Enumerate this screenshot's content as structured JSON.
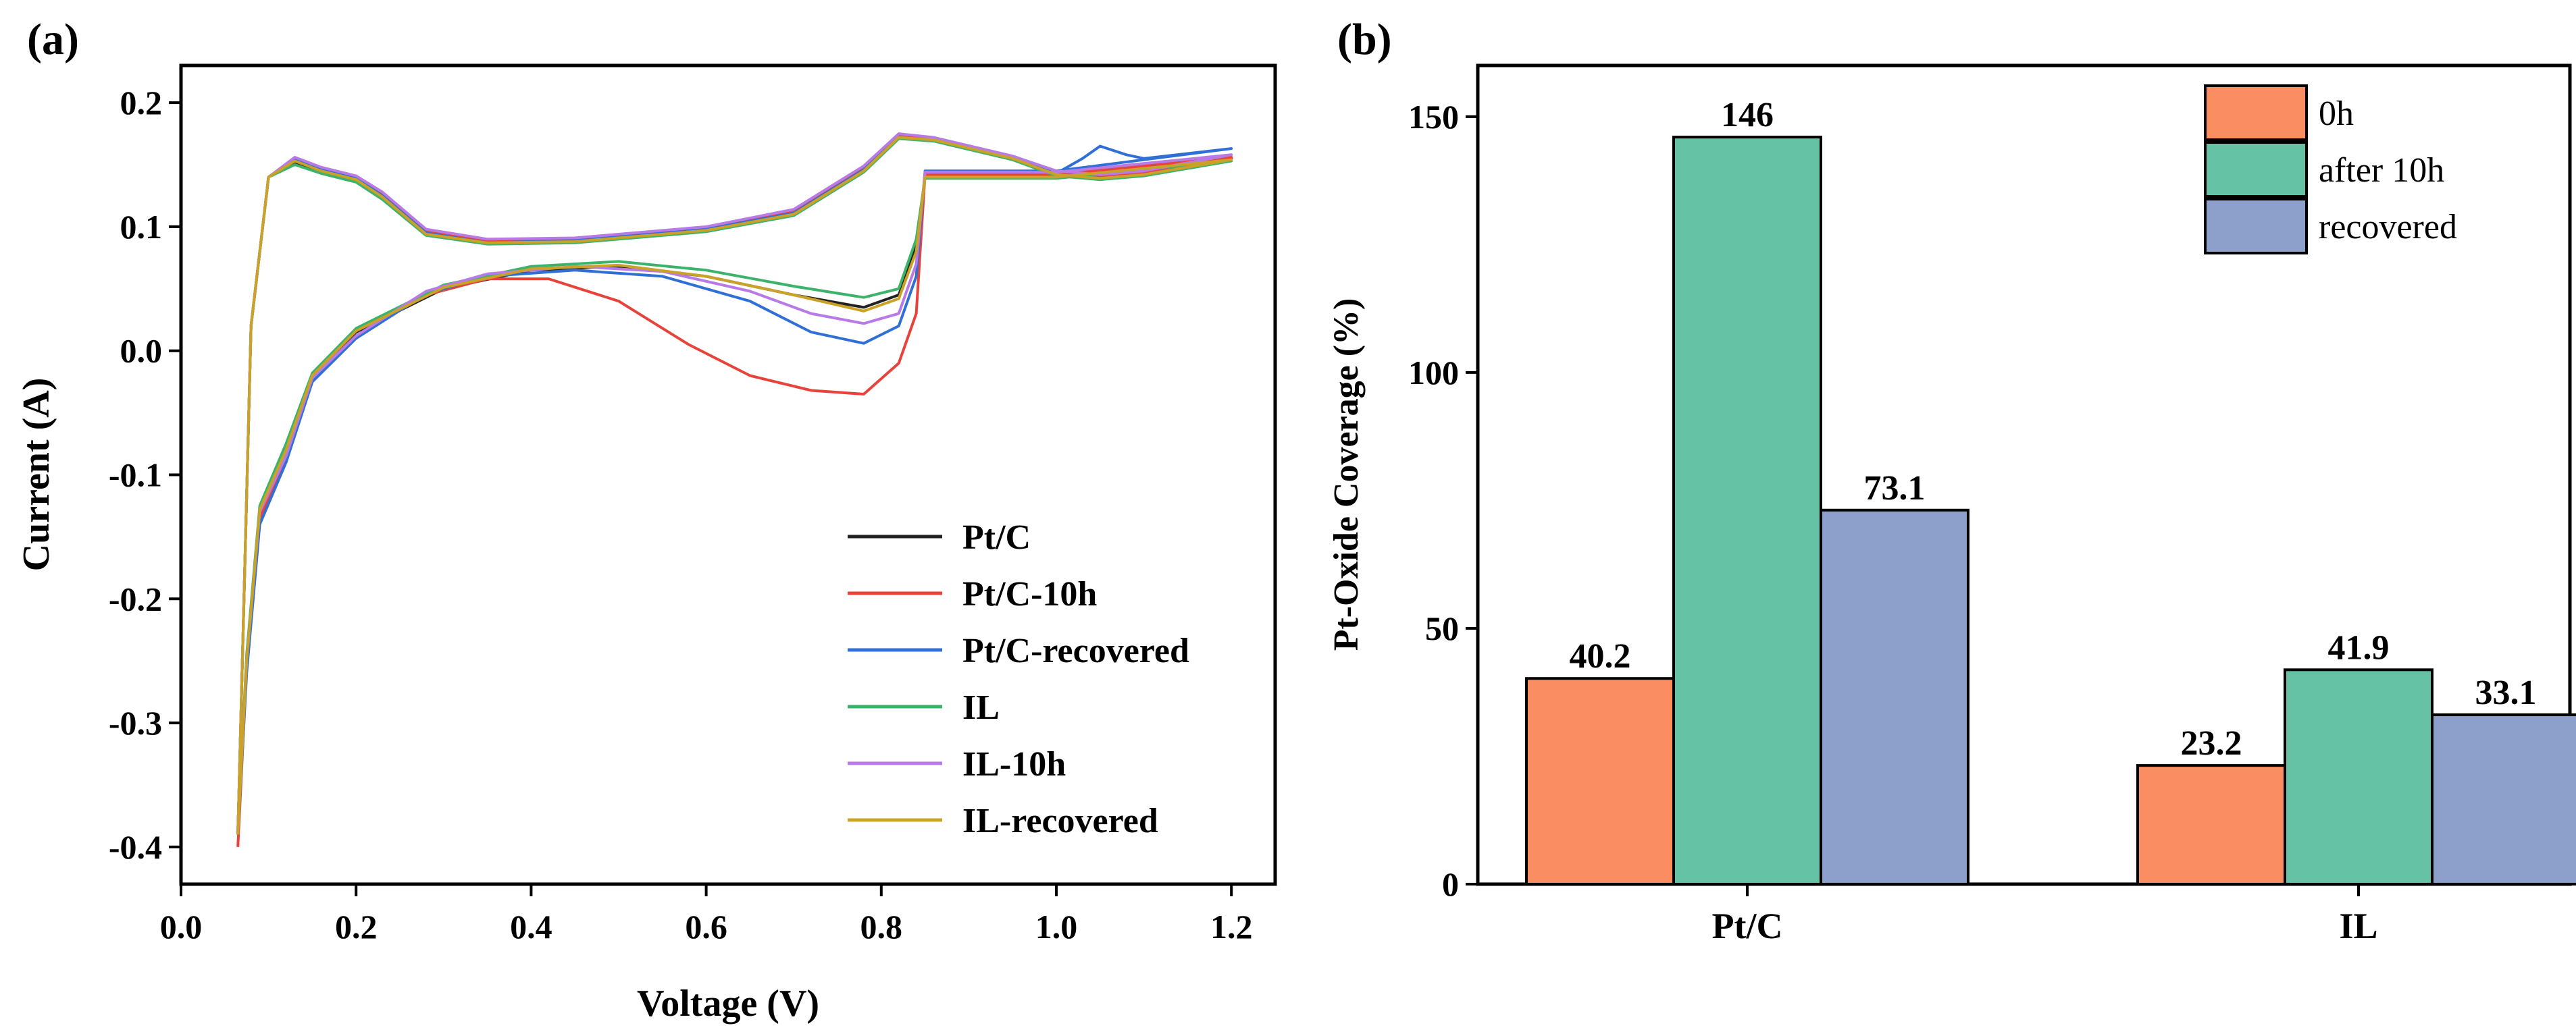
{
  "colors": {
    "axis": "#000000",
    "Pt/C": "#222222",
    "Pt/C-10h": "#e8433b",
    "Pt/C-recovered": "#2f6fd6",
    "IL": "#3cb36a",
    "IL-10h": "#b87ae6",
    "IL-recovered": "#c9a227",
    "bar_0h": "#fb8d62",
    "bar_after10h": "#66c2a5",
    "bar_recovered": "#8da0cb"
  },
  "chart_data": [
    {
      "panel": "(a)",
      "type": "line",
      "title": "",
      "xlabel": "Voltage (V)",
      "ylabel": "Current (A)",
      "xlim": [
        0.0,
        1.25
      ],
      "ylim": [
        -0.43,
        0.23
      ],
      "xticks": [
        0.0,
        0.2,
        0.4,
        0.6,
        0.8,
        1.0,
        1.2
      ],
      "xtick_labels": [
        "0.0",
        "0.2",
        "0.4",
        "0.6",
        "0.8",
        "1.0",
        "1.2"
      ],
      "yticks": [
        -0.4,
        -0.3,
        -0.2,
        -0.1,
        0.0,
        0.1,
        0.2
      ],
      "ytick_labels": [
        "-0.4",
        "-0.3",
        "-0.2",
        "-0.1",
        "0.0",
        "0.1",
        "0.2"
      ],
      "legend_position": "bottom-right",
      "series": [
        {
          "name": "Pt/C",
          "color_key": "Pt/C",
          "anodic": [
            [
              0.065,
              -0.39
            ],
            [
              0.08,
              0.02
            ],
            [
              0.1,
              0.14
            ],
            [
              0.13,
              0.152
            ],
            [
              0.16,
              0.145
            ],
            [
              0.2,
              0.138
            ],
            [
              0.23,
              0.125
            ],
            [
              0.28,
              0.095
            ],
            [
              0.35,
              0.087
            ],
            [
              0.45,
              0.088
            ],
            [
              0.6,
              0.097
            ],
            [
              0.7,
              0.11
            ],
            [
              0.78,
              0.145
            ],
            [
              0.82,
              0.172
            ],
            [
              0.86,
              0.17
            ],
            [
              0.95,
              0.155
            ],
            [
              1.0,
              0.142
            ],
            [
              1.05,
              0.138
            ],
            [
              1.1,
              0.142
            ],
            [
              1.2,
              0.155
            ]
          ],
          "cathodic": [
            [
              1.2,
              0.155
            ],
            [
              1.0,
              0.14
            ],
            [
              0.85,
              0.14
            ],
            [
              0.84,
              0.085
            ],
            [
              0.82,
              0.045
            ],
            [
              0.78,
              0.035
            ],
            [
              0.7,
              0.045
            ],
            [
              0.6,
              0.06
            ],
            [
              0.5,
              0.068
            ],
            [
              0.4,
              0.065
            ],
            [
              0.3,
              0.05
            ],
            [
              0.2,
              0.015
            ],
            [
              0.15,
              -0.02
            ],
            [
              0.12,
              -0.08
            ],
            [
              0.09,
              -0.13
            ],
            [
              0.075,
              -0.25
            ],
            [
              0.065,
              -0.39
            ]
          ]
        },
        {
          "name": "Pt/C-10h",
          "color_key": "Pt/C-10h",
          "anodic": [
            [
              0.065,
              -0.39
            ],
            [
              0.08,
              0.02
            ],
            [
              0.1,
              0.14
            ],
            [
              0.13,
              0.155
            ],
            [
              0.16,
              0.146
            ],
            [
              0.2,
              0.14
            ],
            [
              0.23,
              0.126
            ],
            [
              0.28,
              0.096
            ],
            [
              0.35,
              0.088
            ],
            [
              0.45,
              0.089
            ],
            [
              0.6,
              0.098
            ],
            [
              0.7,
              0.112
            ],
            [
              0.78,
              0.147
            ],
            [
              0.82,
              0.173
            ],
            [
              0.86,
              0.171
            ],
            [
              0.95,
              0.156
            ],
            [
              1.0,
              0.143
            ],
            [
              1.05,
              0.14
            ],
            [
              1.1,
              0.143
            ],
            [
              1.2,
              0.156
            ]
          ],
          "cathodic": [
            [
              1.2,
              0.156
            ],
            [
              1.0,
              0.142
            ],
            [
              0.85,
              0.142
            ],
            [
              0.84,
              0.03
            ],
            [
              0.82,
              -0.01
            ],
            [
              0.78,
              -0.035
            ],
            [
              0.72,
              -0.032
            ],
            [
              0.65,
              -0.02
            ],
            [
              0.58,
              0.005
            ],
            [
              0.5,
              0.04
            ],
            [
              0.42,
              0.058
            ],
            [
              0.35,
              0.058
            ],
            [
              0.28,
              0.045
            ],
            [
              0.2,
              0.012
            ],
            [
              0.15,
              -0.022
            ],
            [
              0.12,
              -0.085
            ],
            [
              0.09,
              -0.135
            ],
            [
              0.075,
              -0.255
            ],
            [
              0.065,
              -0.4
            ]
          ]
        },
        {
          "name": "Pt/C-recovered",
          "color_key": "Pt/C-recovered",
          "anodic": [
            [
              0.065,
              -0.39
            ],
            [
              0.08,
              0.02
            ],
            [
              0.1,
              0.14
            ],
            [
              0.13,
              0.154
            ],
            [
              0.16,
              0.146
            ],
            [
              0.2,
              0.139
            ],
            [
              0.23,
              0.125
            ],
            [
              0.28,
              0.095
            ],
            [
              0.35,
              0.087
            ],
            [
              0.45,
              0.089
            ],
            [
              0.6,
              0.098
            ],
            [
              0.7,
              0.111
            ],
            [
              0.78,
              0.146
            ],
            [
              0.82,
              0.172
            ],
            [
              0.86,
              0.17
            ],
            [
              0.95,
              0.155
            ],
            [
              1.0,
              0.143
            ],
            [
              1.03,
              0.155
            ],
            [
              1.05,
              0.165
            ],
            [
              1.08,
              0.158
            ],
            [
              1.1,
              0.155
            ],
            [
              1.2,
              0.163
            ]
          ],
          "cathodic": [
            [
              1.2,
              0.163
            ],
            [
              1.0,
              0.145
            ],
            [
              0.85,
              0.145
            ],
            [
              0.84,
              0.06
            ],
            [
              0.82,
              0.02
            ],
            [
              0.78,
              0.006
            ],
            [
              0.72,
              0.015
            ],
            [
              0.65,
              0.04
            ],
            [
              0.55,
              0.06
            ],
            [
              0.45,
              0.065
            ],
            [
              0.35,
              0.06
            ],
            [
              0.28,
              0.046
            ],
            [
              0.2,
              0.01
            ],
            [
              0.15,
              -0.025
            ],
            [
              0.12,
              -0.09
            ],
            [
              0.09,
              -0.14
            ],
            [
              0.075,
              -0.26
            ],
            [
              0.065,
              -0.39
            ]
          ]
        },
        {
          "name": "IL",
          "color_key": "IL",
          "anodic": [
            [
              0.065,
              -0.39
            ],
            [
              0.08,
              0.02
            ],
            [
              0.1,
              0.14
            ],
            [
              0.13,
              0.15
            ],
            [
              0.16,
              0.143
            ],
            [
              0.2,
              0.136
            ],
            [
              0.23,
              0.122
            ],
            [
              0.28,
              0.093
            ],
            [
              0.35,
              0.086
            ],
            [
              0.45,
              0.087
            ],
            [
              0.6,
              0.096
            ],
            [
              0.7,
              0.109
            ],
            [
              0.78,
              0.144
            ],
            [
              0.82,
              0.171
            ],
            [
              0.86,
              0.169
            ],
            [
              0.95,
              0.154
            ],
            [
              1.0,
              0.141
            ],
            [
              1.05,
              0.138
            ],
            [
              1.1,
              0.141
            ],
            [
              1.2,
              0.153
            ]
          ],
          "cathodic": [
            [
              1.2,
              0.153
            ],
            [
              1.0,
              0.139
            ],
            [
              0.85,
              0.139
            ],
            [
              0.84,
              0.09
            ],
            [
              0.82,
              0.05
            ],
            [
              0.78,
              0.043
            ],
            [
              0.7,
              0.052
            ],
            [
              0.6,
              0.065
            ],
            [
              0.5,
              0.072
            ],
            [
              0.4,
              0.068
            ],
            [
              0.3,
              0.053
            ],
            [
              0.2,
              0.018
            ],
            [
              0.15,
              -0.018
            ],
            [
              0.12,
              -0.075
            ],
            [
              0.09,
              -0.125
            ],
            [
              0.075,
              -0.245
            ],
            [
              0.065,
              -0.385
            ]
          ]
        },
        {
          "name": "IL-10h",
          "color_key": "IL-10h",
          "anodic": [
            [
              0.065,
              -0.39
            ],
            [
              0.08,
              0.02
            ],
            [
              0.1,
              0.14
            ],
            [
              0.13,
              0.156
            ],
            [
              0.16,
              0.148
            ],
            [
              0.2,
              0.141
            ],
            [
              0.23,
              0.128
            ],
            [
              0.28,
              0.098
            ],
            [
              0.35,
              0.09
            ],
            [
              0.45,
              0.091
            ],
            [
              0.6,
              0.1
            ],
            [
              0.7,
              0.114
            ],
            [
              0.78,
              0.149
            ],
            [
              0.82,
              0.175
            ],
            [
              0.86,
              0.172
            ],
            [
              0.95,
              0.157
            ],
            [
              1.0,
              0.145
            ],
            [
              1.05,
              0.142
            ],
            [
              1.1,
              0.145
            ],
            [
              1.2,
              0.158
            ]
          ],
          "cathodic": [
            [
              1.2,
              0.158
            ],
            [
              1.0,
              0.144
            ],
            [
              0.85,
              0.144
            ],
            [
              0.84,
              0.07
            ],
            [
              0.82,
              0.03
            ],
            [
              0.78,
              0.022
            ],
            [
              0.72,
              0.03
            ],
            [
              0.65,
              0.048
            ],
            [
              0.55,
              0.064
            ],
            [
              0.45,
              0.068
            ],
            [
              0.35,
              0.062
            ],
            [
              0.28,
              0.048
            ],
            [
              0.2,
              0.012
            ],
            [
              0.15,
              -0.022
            ],
            [
              0.12,
              -0.085
            ],
            [
              0.09,
              -0.13
            ],
            [
              0.075,
              -0.25
            ],
            [
              0.065,
              -0.385
            ]
          ]
        },
        {
          "name": "IL-recovered",
          "color_key": "IL-recovered",
          "anodic": [
            [
              0.065,
              -0.39
            ],
            [
              0.08,
              0.02
            ],
            [
              0.1,
              0.14
            ],
            [
              0.13,
              0.153
            ],
            [
              0.16,
              0.145
            ],
            [
              0.2,
              0.138
            ],
            [
              0.23,
              0.124
            ],
            [
              0.28,
              0.094
            ],
            [
              0.35,
              0.087
            ],
            [
              0.45,
              0.088
            ],
            [
              0.6,
              0.097
            ],
            [
              0.7,
              0.11
            ],
            [
              0.78,
              0.145
            ],
            [
              0.82,
              0.172
            ],
            [
              0.86,
              0.17
            ],
            [
              0.95,
              0.155
            ],
            [
              1.0,
              0.142
            ],
            [
              1.05,
              0.139
            ],
            [
              1.1,
              0.142
            ],
            [
              1.2,
              0.154
            ]
          ],
          "cathodic": [
            [
              1.2,
              0.154
            ],
            [
              1.0,
              0.14
            ],
            [
              0.85,
              0.14
            ],
            [
              0.84,
              0.08
            ],
            [
              0.82,
              0.042
            ],
            [
              0.78,
              0.032
            ],
            [
              0.7,
              0.045
            ],
            [
              0.6,
              0.06
            ],
            [
              0.5,
              0.069
            ],
            [
              0.4,
              0.066
            ],
            [
              0.3,
              0.051
            ],
            [
              0.2,
              0.016
            ],
            [
              0.15,
              -0.02
            ],
            [
              0.12,
              -0.08
            ],
            [
              0.09,
              -0.128
            ],
            [
              0.075,
              -0.25
            ],
            [
              0.065,
              -0.39
            ]
          ]
        }
      ]
    },
    {
      "panel": "(b)",
      "type": "bar",
      "title": "",
      "xlabel": "",
      "ylabel": "Pt-Oxide Coverage (%)",
      "ylim": [
        0,
        160
      ],
      "yticks": [
        0,
        50,
        100,
        150
      ],
      "ytick_labels": [
        "0",
        "50",
        "100",
        "150"
      ],
      "categories": [
        "Pt/C",
        "IL"
      ],
      "legend_position": "top-right",
      "series": [
        {
          "name": "0h",
          "color_key": "bar_0h",
          "values": [
            40.2,
            23.2
          ],
          "labels": [
            "40.2",
            "23.2"
          ]
        },
        {
          "name": "after 10h",
          "color_key": "bar_after10h",
          "values": [
            146,
            41.9
          ],
          "labels": [
            "146",
            "41.9"
          ]
        },
        {
          "name": "recovered",
          "color_key": "bar_recovered",
          "values": [
            73.1,
            33.1
          ],
          "labels": [
            "73.1",
            "33.1"
          ]
        }
      ]
    }
  ]
}
